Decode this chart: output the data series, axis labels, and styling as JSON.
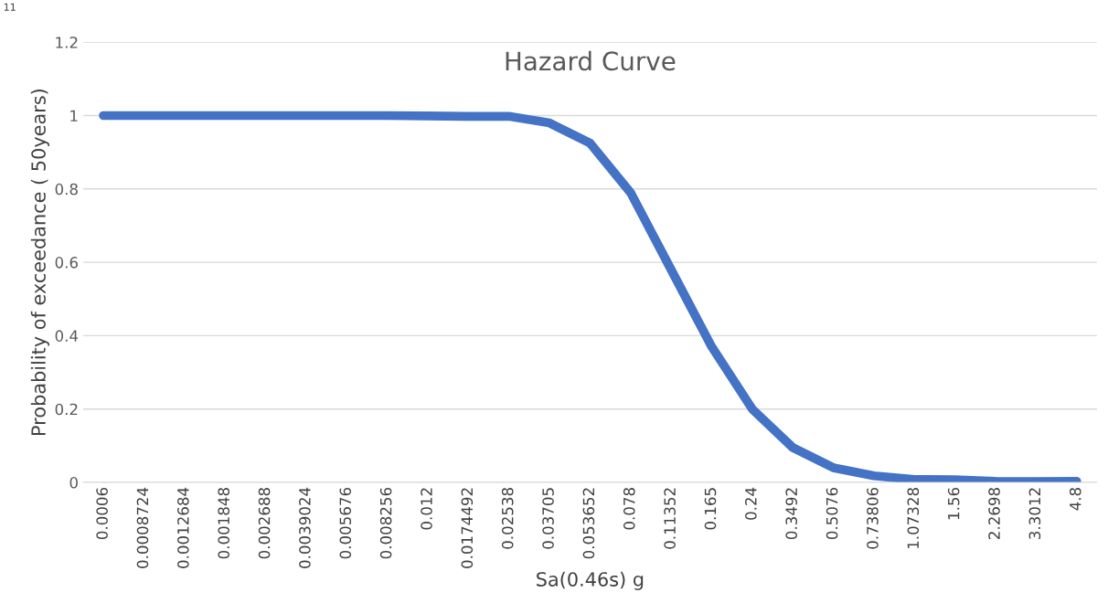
{
  "chart_data": {
    "type": "line",
    "title": "Hazard Curve",
    "xlabel": "Sa(0.46s) g",
    "ylabel": "Probability of exceedance ( 50years)",
    "categories": [
      "0.0006",
      "0.0008724",
      "0.0012684",
      "0.001848",
      "0.002688",
      "0.0039024",
      "0.005676",
      "0.008256",
      "0.012",
      "0.0174492",
      "0.02538",
      "0.03705",
      "0.053652",
      "0.078",
      "0.11352",
      "0.165",
      "0.24",
      "0.3492",
      "0.5076",
      "0.73806",
      "1.07328",
      "1.56",
      "2.2698",
      "3.3012",
      "4.8"
    ],
    "series": [
      {
        "color": "#4472c4",
        "values": [
          1,
          1,
          1,
          1,
          1,
          1,
          1,
          1,
          0.999,
          0.998,
          0.998,
          0.98,
          0.925,
          0.79,
          0.58,
          0.37,
          0.2,
          0.095,
          0.04,
          0.018,
          0.008,
          0.007,
          0.003,
          0.002,
          0.003
        ]
      }
    ],
    "ylim": [
      0,
      1.2
    ],
    "yticks": [
      0,
      0.2,
      0.4,
      0.6,
      0.8,
      1,
      1.2
    ],
    "grid": "y",
    "legend": false,
    "marker": "none",
    "line_style": "solid",
    "annotations": [
      "11"
    ]
  }
}
